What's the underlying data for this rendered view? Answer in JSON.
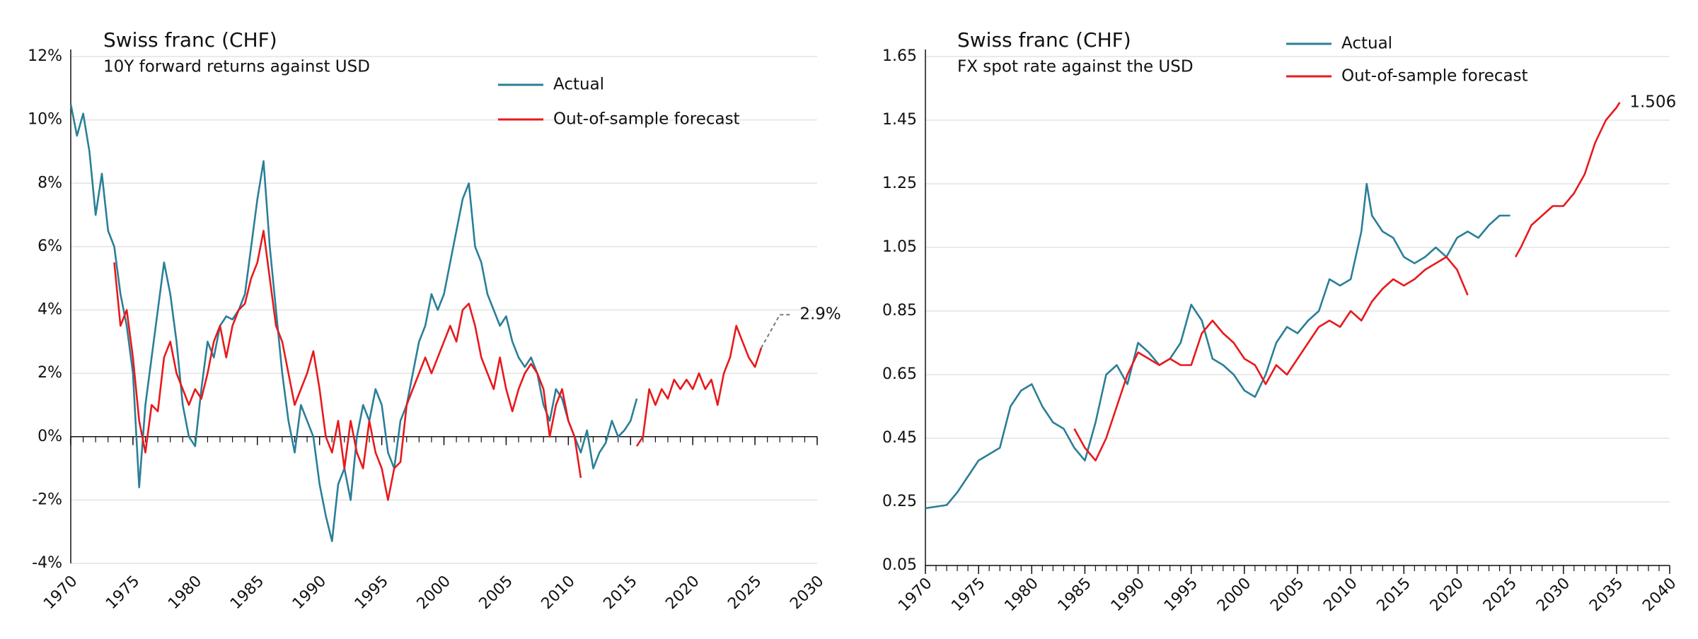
{
  "chart_data": [
    {
      "type": "line",
      "title": "Swiss franc (CHF)",
      "subtitle": "10Y forward returns against USD",
      "xlim": [
        1970,
        2030
      ],
      "xticks": [
        1970,
        1975,
        1980,
        1985,
        1990,
        1995,
        2000,
        2005,
        2010,
        2015,
        2020,
        2025,
        2030
      ],
      "ylim": [
        -4,
        12
      ],
      "yticks": [
        {
          "value": -4,
          "label": "-4%"
        },
        {
          "value": -2,
          "label": "-2%"
        },
        {
          "value": 0,
          "label": "0%"
        },
        {
          "value": 2,
          "label": "2%"
        },
        {
          "value": 4,
          "label": "4%"
        },
        {
          "value": 6,
          "label": "6%"
        },
        {
          "value": 8,
          "label": "8%"
        },
        {
          "value": 10,
          "label": "10%"
        },
        {
          "value": 12,
          "label": "12%"
        }
      ],
      "grid": true,
      "legend": "top-center",
      "series": [
        {
          "name": "Actual",
          "color": "#2a7f98",
          "x": [
            1970,
            1970.5,
            1971,
            1971.5,
            1972,
            1972.5,
            1973,
            1973.5,
            1974,
            1974.5,
            1975,
            1975.5,
            1976,
            1976.5,
            1977,
            1977.5,
            1978,
            1978.5,
            1979,
            1979.5,
            1980,
            1980.5,
            1981,
            1981.5,
            1982,
            1982.5,
            1983,
            1983.5,
            1984,
            1984.5,
            1985,
            1985.5,
            1986,
            1986.5,
            1987,
            1987.5,
            1988,
            1988.5,
            1989,
            1989.5,
            1990,
            1990.5,
            1991,
            1991.5,
            1992,
            1992.5,
            1993,
            1993.5,
            1994,
            1994.5,
            1995,
            1995.5,
            1996,
            1996.5,
            1997,
            1997.5,
            1998,
            1998.5,
            1999,
            1999.5,
            2000,
            2000.5,
            2001,
            2001.5,
            2002,
            2002.5,
            2003,
            2003.5,
            2004,
            2004.5,
            2005,
            2005.5,
            2006,
            2006.5,
            2007,
            2007.5,
            2008,
            2008.5,
            2009,
            2009.5,
            2010,
            2010.5,
            2011,
            2011.5,
            2012,
            2012.5,
            2013,
            2013.5,
            2014,
            2014.5,
            2015,
            2015.5
          ],
          "values": [
            10.5,
            9.5,
            10.2,
            9.0,
            7.0,
            8.3,
            6.5,
            6.0,
            4.5,
            3.5,
            2.0,
            -1.6,
            1.0,
            2.5,
            4.0,
            5.5,
            4.5,
            3.0,
            1.0,
            0,
            -0.3,
            1.5,
            3.0,
            2.5,
            3.5,
            3.8,
            3.7,
            4.0,
            4.5,
            6.0,
            7.5,
            8.7,
            6.0,
            4.0,
            2.0,
            0.5,
            -0.5,
            1.0,
            0.5,
            0,
            -1.5,
            -2.5,
            -3.3,
            -1.5,
            -1.0,
            -2.0,
            0,
            1.0,
            0.5,
            1.5,
            1.0,
            -0.5,
            -1.0,
            0.5,
            1.0,
            2.0,
            3.0,
            3.5,
            4.5,
            4.0,
            4.5,
            5.5,
            6.5,
            7.5,
            8.0,
            6.0,
            5.5,
            4.5,
            4.0,
            3.5,
            3.8,
            3.0,
            2.5,
            2.2,
            2.5,
            2.0,
            1.0,
            0.5,
            1.5,
            1.2,
            0.5,
            0,
            -0.5,
            0.2,
            -1.0,
            -0.5,
            -0.2,
            0.5,
            0,
            0.2,
            0.5,
            1.2
          ]
        },
        {
          "name": "Out-of-sample forecast",
          "color": "#e8191c",
          "x": [
            1973.5,
            1974,
            1974.5,
            1975,
            1975.5,
            1976,
            1976.5,
            1977,
            1977.5,
            1978,
            1978.5,
            1979,
            1979.5,
            1980,
            1980.5,
            1981,
            1981.5,
            1982,
            1982.5,
            1983,
            1983.5,
            1984,
            1984.5,
            1985,
            1985.5,
            1986,
            1986.5,
            1987,
            1987.5,
            1988,
            1988.5,
            1989,
            1989.5,
            1990,
            1990.5,
            1991,
            1991.5,
            1992,
            1992.5,
            1993,
            1993.5,
            1994,
            1994.5,
            1995,
            1995.5,
            1996,
            1996.5,
            1997,
            1997.5,
            1998,
            1998.5,
            1999,
            1999.5,
            2000,
            2000.5,
            2001,
            2001.5,
            2002,
            2002.5,
            2003,
            2003.5,
            2004,
            2004.5,
            2005,
            2005.5,
            2006,
            2006.5,
            2007,
            2007.5,
            2008,
            2008.5,
            2009,
            2009.5,
            2010,
            2010.5,
            2011,
            2013,
            2015.5,
            2016,
            2016.5,
            2017,
            2017.5,
            2018,
            2018.5,
            2019,
            2019.5,
            2020,
            2020.5,
            2021,
            2021.5,
            2022,
            2022.5,
            2023,
            2023.5,
            2024,
            2024.5,
            2025,
            2025.5
          ],
          "values": [
            5.5,
            3.5,
            4.0,
            2.5,
            0.5,
            -0.5,
            1.0,
            0.8,
            2.5,
            3.0,
            2.0,
            1.5,
            1.0,
            1.5,
            1.2,
            2.0,
            3.0,
            3.5,
            2.5,
            3.5,
            4.0,
            4.2,
            5.0,
            5.5,
            6.5,
            5.0,
            3.5,
            3.0,
            2.0,
            1.0,
            1.5,
            2.0,
            2.7,
            1.5,
            0,
            -0.5,
            0.5,
            -1.0,
            0.5,
            -0.5,
            -1.0,
            0.5,
            -0.5,
            -1.0,
            -2.0,
            -1.0,
            -0.8,
            1.0,
            1.5,
            2.0,
            2.5,
            2.0,
            2.5,
            3.0,
            3.5,
            3.0,
            4.0,
            4.2,
            3.5,
            2.5,
            2.0,
            1.5,
            2.5,
            1.5,
            0.8,
            1.5,
            2.0,
            2.3,
            2.0,
            1.5,
            0,
            1.0,
            1.5,
            0.5,
            0,
            -1.3,
            null,
            -0.3,
            0,
            1.5,
            1.0,
            1.5,
            1.2,
            1.8,
            1.5,
            1.8,
            1.5,
            2.0,
            1.5,
            1.8,
            1.0,
            2.0,
            2.5,
            3.5,
            3.0,
            2.5,
            2.2,
            2.8
          ]
        }
      ],
      "connector": {
        "color": "#777777",
        "x": [
          2025.5,
          2027,
          2027.8
        ],
        "values": [
          2.8,
          3.85,
          3.85
        ]
      },
      "annotation": {
        "value": 2.9,
        "label": "2.9%",
        "color": "#e8191c"
      }
    },
    {
      "type": "line",
      "title": "Swiss franc (CHF)",
      "subtitle": "FX spot rate against the USD",
      "xlim": [
        1970,
        2040
      ],
      "xticks": [
        1970,
        1975,
        1980,
        1985,
        1990,
        1995,
        2000,
        2005,
        2010,
        2015,
        2020,
        2025,
        2030,
        2035,
        2040
      ],
      "ylim": [
        0.05,
        1.65
      ],
      "yticks": [
        0.05,
        0.25,
        0.45,
        0.65,
        0.85,
        1.05,
        1.25,
        1.45,
        1.65
      ],
      "grid": true,
      "legend": "top-center",
      "series": [
        {
          "name": "Actual",
          "color": "#2a7f98",
          "x": [
            1970,
            1972,
            1973,
            1974,
            1975,
            1976,
            1977,
            1978,
            1979,
            1980,
            1981,
            1982,
            1983,
            1984,
            1985,
            1986,
            1987,
            1988,
            1989,
            1990,
            1991,
            1992,
            1993,
            1994,
            1995,
            1996,
            1997,
            1998,
            1999,
            2000,
            2001,
            2002,
            2003,
            2004,
            2005,
            2006,
            2007,
            2008,
            2009,
            2010,
            2011,
            2011.5,
            2012,
            2013,
            2014,
            2015,
            2016,
            2017,
            2018,
            2019,
            2020,
            2021,
            2022,
            2023,
            2024,
            2025
          ],
          "values": [
            0.23,
            0.24,
            0.28,
            0.33,
            0.38,
            0.4,
            0.42,
            0.55,
            0.6,
            0.62,
            0.55,
            0.5,
            0.48,
            0.42,
            0.38,
            0.5,
            0.65,
            0.68,
            0.62,
            0.75,
            0.72,
            0.68,
            0.7,
            0.75,
            0.87,
            0.82,
            0.7,
            0.68,
            0.65,
            0.6,
            0.58,
            0.65,
            0.75,
            0.8,
            0.78,
            0.82,
            0.85,
            0.95,
            0.93,
            0.95,
            1.1,
            1.25,
            1.15,
            1.1,
            1.08,
            1.02,
            1.0,
            1.02,
            1.05,
            1.02,
            1.08,
            1.1,
            1.08,
            1.12,
            1.15,
            1.15
          ]
        },
        {
          "name": "Out-of-sample forecast",
          "color": "#e8191c",
          "x": [
            1984,
            1985,
            1986,
            1987,
            1988,
            1989,
            1990,
            1991,
            1992,
            1993,
            1994,
            1995,
            1996,
            1997,
            1998,
            1999,
            2000,
            2001,
            2002,
            2003,
            2004,
            2005,
            2006,
            2007,
            2008,
            2009,
            2010,
            2011,
            2012,
            2013,
            2014,
            2015,
            2016,
            2017,
            2018,
            2019,
            2020,
            2021,
            2023,
            2025.5,
            2026,
            2027,
            2028,
            2029,
            2030,
            2031,
            2032,
            2033,
            2034,
            2035,
            2035.3
          ],
          "values": [
            0.48,
            0.42,
            0.38,
            0.45,
            0.55,
            0.65,
            0.72,
            0.7,
            0.68,
            0.7,
            0.68,
            0.68,
            0.78,
            0.82,
            0.78,
            0.75,
            0.7,
            0.68,
            0.62,
            0.68,
            0.65,
            0.7,
            0.75,
            0.8,
            0.82,
            0.8,
            0.85,
            0.82,
            0.88,
            0.92,
            0.95,
            0.93,
            0.95,
            0.98,
            1.0,
            1.02,
            0.98,
            0.9,
            null,
            1.02,
            1.05,
            1.12,
            1.15,
            1.18,
            1.18,
            1.22,
            1.28,
            1.38,
            1.45,
            1.49,
            1.506
          ]
        }
      ],
      "annotation": {
        "value": 1.506,
        "color": "#e8191c"
      }
    }
  ]
}
